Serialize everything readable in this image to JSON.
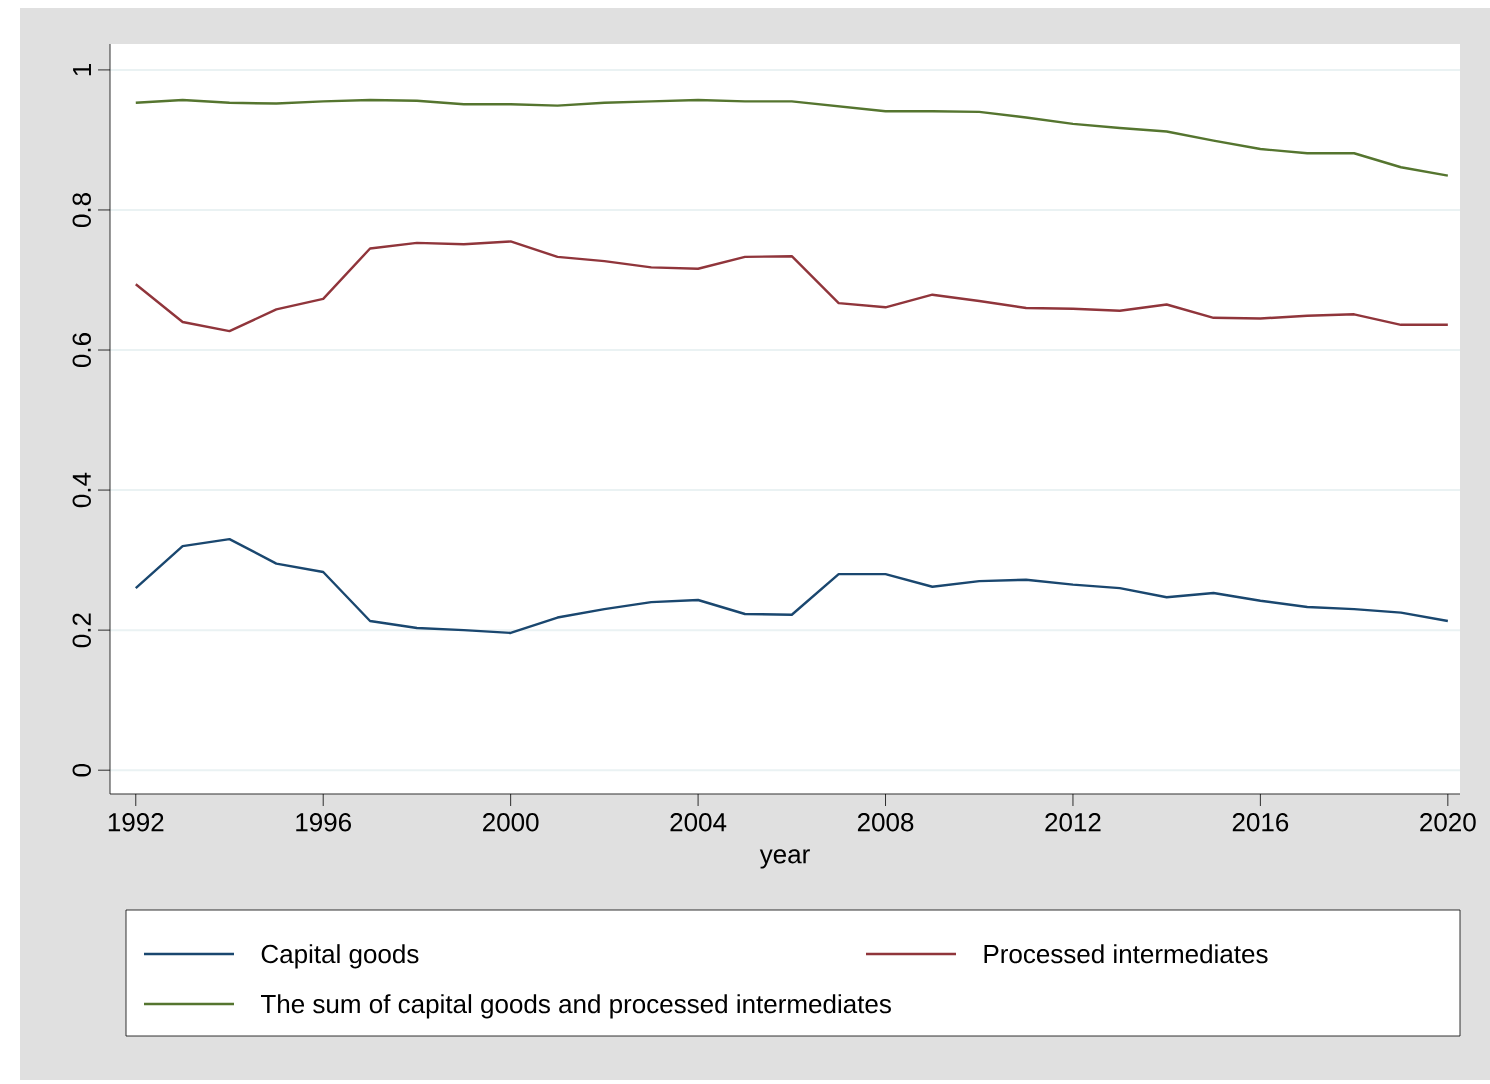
{
  "chart_data": {
    "type": "line",
    "xlabel": "year",
    "x": [
      1992,
      1993,
      1994,
      1995,
      1996,
      1997,
      1998,
      1999,
      2000,
      2001,
      2002,
      2003,
      2004,
      2005,
      2006,
      2007,
      2008,
      2009,
      2010,
      2011,
      2012,
      2013,
      2014,
      2015,
      2016,
      2017,
      2018,
      2019,
      2020
    ],
    "series": [
      {
        "name": "Capital goods",
        "color": "#1a476f",
        "values": [
          0.26,
          0.32,
          0.33,
          0.295,
          0.283,
          0.213,
          0.203,
          0.2,
          0.196,
          0.218,
          0.23,
          0.24,
          0.243,
          0.223,
          0.222,
          0.28,
          0.28,
          0.262,
          0.27,
          0.272,
          0.265,
          0.26,
          0.247,
          0.253,
          0.242,
          0.233,
          0.23,
          0.225,
          0.213
        ]
      },
      {
        "name": "Processed intermediates",
        "color": "#90353b",
        "values": [
          0.694,
          0.64,
          0.627,
          0.658,
          0.673,
          0.745,
          0.753,
          0.751,
          0.755,
          0.733,
          0.727,
          0.718,
          0.716,
          0.733,
          0.734,
          0.667,
          0.661,
          0.679,
          0.67,
          0.66,
          0.659,
          0.656,
          0.665,
          0.646,
          0.645,
          0.649,
          0.651,
          0.636,
          0.636
        ]
      },
      {
        "name": "The sum of capital goods and processed intermediates",
        "color": "#55752f",
        "values": [
          0.953,
          0.957,
          0.953,
          0.952,
          0.955,
          0.957,
          0.956,
          0.951,
          0.951,
          0.949,
          0.953,
          0.955,
          0.957,
          0.955,
          0.955,
          0.948,
          0.941,
          0.941,
          0.94,
          0.932,
          0.923,
          0.917,
          0.912,
          0.899,
          0.887,
          0.881,
          0.881,
          0.861,
          0.849
        ]
      }
    ],
    "xlim": [
      1991.45,
      2020.26
    ],
    "ylim": [
      -0.034,
      1.037
    ],
    "xticks": [
      1992,
      1996,
      2000,
      2004,
      2008,
      2012,
      2016,
      2020
    ],
    "yticks": [
      0,
      0.2,
      0.4,
      0.6,
      0.8,
      1
    ],
    "grid": "y",
    "legend": "bottom",
    "marker": "none",
    "line_style": "solid"
  }
}
